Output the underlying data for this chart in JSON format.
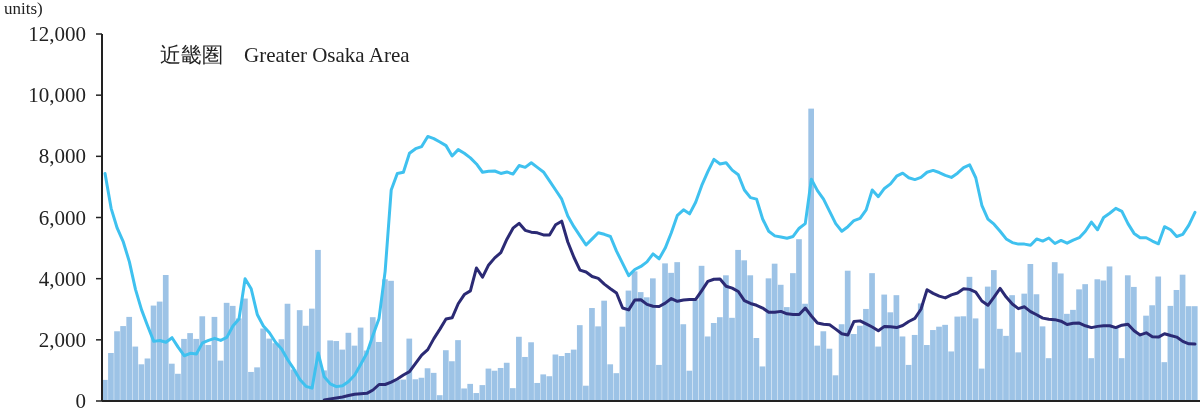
{
  "chart_data": {
    "type": "bar",
    "title": "近畿圏　Greater Osaka Area",
    "ylabel": "units)",
    "categories": [
      null,
      null,
      null,
      null,
      null,
      null,
      null,
      null,
      null,
      null,
      null,
      null,
      null,
      null,
      null,
      null,
      null,
      null,
      null,
      null,
      null,
      null,
      null,
      null,
      null,
      null,
      null,
      null,
      null,
      null,
      null,
      null,
      null,
      null,
      null,
      null,
      null,
      null,
      null,
      null,
      null,
      null,
      null,
      null,
      null,
      null,
      null,
      null,
      null,
      null,
      null,
      null,
      null,
      null,
      null,
      null,
      null,
      null,
      null,
      null,
      null,
      null,
      null,
      null,
      null,
      null,
      null,
      null,
      null,
      null,
      null,
      null,
      null,
      null,
      null,
      null,
      null,
      null,
      null,
      null,
      null,
      null,
      null,
      null,
      null,
      null,
      null,
      null,
      null,
      null,
      null,
      null,
      null,
      null,
      null,
      null,
      null,
      null,
      null,
      null,
      null,
      null,
      null,
      null,
      null,
      null,
      null,
      null,
      null,
      null,
      null,
      null,
      null,
      null,
      null,
      null,
      null,
      null,
      null,
      null,
      null,
      null,
      null,
      null,
      null,
      null,
      null,
      null,
      null,
      null,
      null,
      null,
      null,
      null,
      null,
      null,
      null,
      null,
      null,
      null,
      null,
      null,
      null,
      null,
      null,
      null,
      null,
      null,
      null,
      null,
      null,
      null,
      null,
      null,
      null,
      null,
      null,
      null,
      null,
      null,
      null,
      null,
      null,
      null,
      null,
      null,
      null,
      null,
      null,
      null,
      null,
      null,
      null,
      null,
      null,
      null,
      null,
      null,
      null,
      null
    ],
    "ylim": [
      0,
      12000
    ],
    "yticks": [
      {
        "value": 0,
        "label": "0"
      },
      {
        "value": 2000,
        "label": "2,000"
      },
      {
        "value": 4000,
        "label": "4,000"
      },
      {
        "value": 6000,
        "label": "6,000"
      },
      {
        "value": 8000,
        "label": "8,000"
      },
      {
        "value": 10000,
        "label": "10,000"
      },
      {
        "value": 12000,
        "label": "12,000"
      }
    ],
    "series": [
      {
        "color": "#9dc3e6",
        "values": [
          690,
          1570,
          2280,
          2450,
          2750,
          1780,
          1200,
          1390,
          3120,
          3250,
          4120,
          1220,
          890,
          2030,
          2220,
          2030,
          2770,
          1830,
          2750,
          1320,
          3210,
          3110,
          2700,
          3350,
          950,
          1100,
          2370,
          2040,
          1890,
          2020,
          3180,
          1030,
          2970,
          2460,
          3020,
          4940,
          1000,
          1980,
          1960,
          1680,
          2230,
          1810,
          2400,
          1650,
          2740,
          1930,
          3980,
          3930,
          680,
          700,
          2040,
          710,
          760,
          1070,
          920,
          190,
          1660,
          1300,
          1990,
          410,
          560,
          260,
          520,
          1060,
          990,
          1080,
          1250,
          420,
          2100,
          1440,
          1920,
          590,
          870,
          810,
          1520,
          1470,
          1570,
          1680,
          2480,
          500,
          3040,
          2440,
          3280,
          1200,
          910,
          2430,
          3610,
          4240,
          3560,
          3390,
          4010,
          1180,
          4500,
          4190,
          4540,
          2510,
          990,
          3300,
          4420,
          2110,
          2550,
          2740,
          4110,
          2720,
          4940,
          4600,
          4110,
          2060,
          1130,
          4010,
          4490,
          3800,
          3070,
          4180,
          5290,
          3180,
          9560,
          1810,
          2280,
          1710,
          840,
          2510,
          4260,
          2190,
          2460,
          3010,
          4180,
          1780,
          3480,
          2900,
          3460,
          2110,
          1180,
          2160,
          3190,
          1830,
          2320,
          2430,
          2490,
          1620,
          2760,
          2770,
          4060,
          2700,
          1060,
          3740,
          4280,
          2360,
          2130,
          3460,
          1590,
          3510,
          4480,
          3490,
          2440,
          1400,
          4540,
          4170,
          2850,
          2980,
          3650,
          3820,
          1400,
          3980,
          3940,
          4400,
          2450,
          1400,
          4110,
          3730,
          2150,
          2790,
          3130,
          4070,
          1270,
          3110,
          3630,
          4130,
          3100,
          3100
        ]
      },
      {
        "type": "line",
        "color": "#3fc1ef",
        "values": [
          7440,
          6300,
          5650,
          5200,
          4550,
          3650,
          2980,
          2450,
          1950,
          1980,
          1920,
          2070,
          1760,
          1480,
          1560,
          1540,
          1900,
          1980,
          2050,
          1980,
          2080,
          2450,
          2680,
          4000,
          3670,
          2830,
          2450,
          2230,
          1920,
          1700,
          1350,
          1050,
          700,
          480,
          420,
          1570,
          790,
          560,
          470,
          500,
          640,
          850,
          1200,
          1560,
          2150,
          2700,
          4240,
          6900,
          7440,
          7480,
          8100,
          8250,
          8320,
          8650,
          8580,
          8470,
          8350,
          8010,
          8220,
          8100,
          7950,
          7750,
          7480,
          7510,
          7520,
          7440,
          7490,
          7420,
          7700,
          7640,
          7790,
          7640,
          7490,
          7200,
          6900,
          6600,
          6050,
          5700,
          5400,
          5100,
          5300,
          5500,
          5450,
          5380,
          4900,
          4500,
          4100,
          4300,
          4400,
          4550,
          4810,
          4650,
          5000,
          5500,
          6070,
          6250,
          6120,
          6500,
          7050,
          7500,
          7900,
          7750,
          7790,
          7550,
          7400,
          6900,
          6650,
          6600,
          5950,
          5550,
          5400,
          5360,
          5320,
          5380,
          5650,
          5800,
          7250,
          6880,
          6600,
          6200,
          5800,
          5550,
          5700,
          5900,
          5970,
          6250,
          6900,
          6680,
          6950,
          7100,
          7350,
          7450,
          7300,
          7240,
          7310,
          7480,
          7540,
          7470,
          7380,
          7310,
          7450,
          7630,
          7720,
          7300,
          6400,
          5950,
          5780,
          5550,
          5300,
          5180,
          5130,
          5130,
          5090,
          5300,
          5230,
          5330,
          5150,
          5250,
          5160,
          5260,
          5340,
          5550,
          5850,
          5600,
          6000,
          6140,
          6300,
          6200,
          5800,
          5480,
          5340,
          5340,
          5230,
          5140,
          5700,
          5600,
          5380,
          5450,
          5750,
          6170
        ]
      },
      {
        "type": "line",
        "color": "#2b2a74",
        "values": [
          null,
          null,
          null,
          null,
          null,
          null,
          null,
          null,
          null,
          null,
          null,
          null,
          null,
          null,
          null,
          null,
          null,
          null,
          null,
          null,
          null,
          null,
          null,
          null,
          null,
          null,
          null,
          null,
          null,
          null,
          null,
          null,
          null,
          null,
          null,
          null,
          30,
          70,
          100,
          130,
          180,
          220,
          240,
          250,
          360,
          540,
          540,
          620,
          720,
          850,
          960,
          1230,
          1500,
          1680,
          2040,
          2350,
          2680,
          2720,
          3180,
          3480,
          3600,
          4350,
          4050,
          4450,
          4680,
          4850,
          5290,
          5650,
          5810,
          5580,
          5520,
          5500,
          5430,
          5430,
          5760,
          5880,
          5200,
          4700,
          4280,
          4220,
          4070,
          4010,
          3820,
          3670,
          3530,
          3040,
          2980,
          3300,
          3310,
          3160,
          3100,
          3090,
          3200,
          3350,
          3260,
          3300,
          3320,
          3320,
          3610,
          3910,
          3980,
          3990,
          3750,
          3690,
          3580,
          3280,
          3190,
          3130,
          3040,
          2900,
          2900,
          2930,
          2850,
          2830,
          2830,
          3040,
          2780,
          2550,
          2510,
          2490,
          2350,
          2200,
          2160,
          2600,
          2620,
          2520,
          2420,
          2300,
          2440,
          2430,
          2400,
          2470,
          2600,
          2700,
          3000,
          3640,
          3520,
          3430,
          3370,
          3470,
          3530,
          3670,
          3650,
          3560,
          3270,
          3130,
          3400,
          3680,
          3400,
          3170,
          3020,
          3080,
          2920,
          2820,
          2710,
          2670,
          2660,
          2610,
          2500,
          2540,
          2550,
          2460,
          2400,
          2440,
          2460,
          2460,
          2400,
          2480,
          2510,
          2300,
          2160,
          2230,
          2100,
          2090,
          2200,
          2140,
          2090,
          1950,
          1870,
          1860
        ]
      }
    ]
  }
}
